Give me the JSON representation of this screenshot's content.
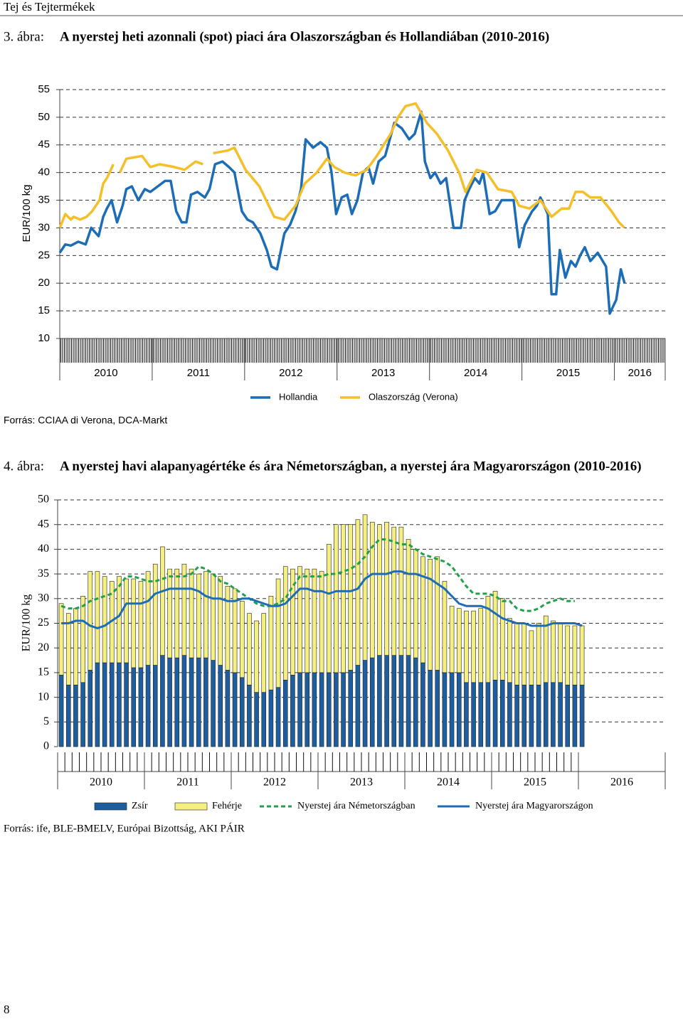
{
  "header": {
    "title": "Tej és Tejtermékek"
  },
  "chart_data": [
    {
      "type": "line",
      "figure_label": "3. ábra:",
      "title": "A nyerstej heti azonnali (spot) piaci ára Olaszországban és Hollandiában (2010-2016)",
      "y_label": "EUR/100 kg",
      "source": "Forrás: CCIAA di Verona, DCA-Markt",
      "xlim": [
        2010,
        2016.55
      ],
      "xticks": [
        2010,
        2011,
        2012,
        2013,
        2014,
        2015,
        2016
      ],
      "ylim": [
        10,
        55
      ],
      "yticks": [
        10,
        15,
        20,
        25,
        30,
        35,
        40,
        45,
        50,
        55
      ],
      "grid": true,
      "legend": "bottom",
      "series": [
        {
          "name": "Hollandia",
          "color": "#1c6db5",
          "x": [
            2010.0,
            2010.06,
            2010.12,
            2010.2,
            2010.28,
            2010.34,
            2010.42,
            2010.47,
            2010.51,
            2010.56,
            2010.62,
            2010.68,
            2010.72,
            2010.78,
            2010.85,
            2010.92,
            2010.98,
            2011.06,
            2011.14,
            2011.2,
            2011.26,
            2011.32,
            2011.37,
            2011.42,
            2011.49,
            2011.57,
            2011.62,
            2011.68,
            2011.76,
            2011.83,
            2011.89,
            2011.97,
            2012.03,
            2012.09,
            2012.17,
            2012.24,
            2012.29,
            2012.35,
            2012.43,
            2012.49,
            2012.55,
            2012.61,
            2012.66,
            2012.74,
            2012.82,
            2012.89,
            2012.94,
            2012.99,
            2013.05,
            2013.11,
            2013.16,
            2013.22,
            2013.28,
            2013.34,
            2013.39,
            2013.45,
            2013.52,
            2013.62,
            2013.7,
            2013.78,
            2013.84,
            2013.91,
            2013.95,
            2014.01,
            2014.06,
            2014.12,
            2014.18,
            2014.26,
            2014.34,
            2014.38,
            2014.43,
            2014.49,
            2014.54,
            2014.58,
            2014.65,
            2014.71,
            2014.78,
            2014.85,
            2014.91,
            2014.97,
            2015.03,
            2015.11,
            2015.16,
            2015.2,
            2015.28,
            2015.32,
            2015.37,
            2015.41,
            2015.47,
            2015.53,
            2015.58,
            2015.63,
            2015.68,
            2015.74,
            2015.82,
            2015.91,
            2015.95,
            2016.02,
            2016.07,
            2016.11
          ],
          "values": [
            25.5,
            27,
            26.8,
            27.5,
            27,
            30,
            28.5,
            32,
            33.5,
            35,
            31,
            34,
            37,
            37.5,
            35,
            37,
            36.5,
            37.5,
            38.5,
            38.5,
            33,
            31,
            31,
            36,
            36.5,
            35.5,
            37,
            41.5,
            42,
            41,
            40,
            33,
            31.5,
            31,
            29,
            26,
            23,
            22.5,
            29,
            30.5,
            33,
            37,
            46,
            44.5,
            45.5,
            44.5,
            40,
            32.5,
            35.5,
            36,
            32.5,
            35,
            40,
            41,
            38,
            42,
            43,
            49,
            48,
            46,
            47,
            51,
            42,
            39,
            40,
            38,
            39,
            30,
            30,
            35,
            37,
            39,
            38,
            40,
            32.5,
            33,
            35,
            35,
            35,
            26.5,
            30.5,
            33,
            34,
            35.5,
            32.5,
            18,
            18,
            26,
            21,
            24,
            23,
            25,
            26.5,
            24,
            25.5,
            23,
            14.5,
            17,
            22.5,
            20
          ]
        },
        {
          "name": "Olaszország (Verona)",
          "color": "#f5bf2a",
          "x": [
            2010.0,
            2010.06,
            2010.12,
            2010.15,
            2010.22,
            2010.29,
            2010.35,
            2010.43,
            2010.47,
            2010.51,
            2010.58,
            2010.62,
            2010.65,
            2010.72,
            2010.89,
            2010.98,
            2011.08,
            2011.24,
            2011.35,
            2011.47,
            2011.55,
            2011.62,
            2011.66,
            2011.82,
            2011.89,
            2012.01,
            2012.16,
            2012.32,
            2012.43,
            2012.55,
            2012.65,
            2012.78,
            2012.89,
            2012.97,
            2013.08,
            2013.2,
            2013.32,
            2013.43,
            2013.58,
            2013.66,
            2013.74,
            2013.85,
            2013.97,
            2014.08,
            2014.2,
            2014.32,
            2014.39,
            2014.51,
            2014.62,
            2014.74,
            2014.89,
            2014.97,
            2015.08,
            2015.2,
            2015.32,
            2015.43,
            2015.51,
            2015.58,
            2015.66,
            2015.74,
            2015.85,
            2015.97,
            2016.05,
            2016.11
          ],
          "values": [
            30,
            32.5,
            31.5,
            32,
            31.5,
            32,
            33,
            35,
            38,
            39,
            41.5,
            null,
            40,
            42.5,
            43,
            41,
            41.5,
            41,
            40.5,
            42,
            41.5,
            null,
            43.5,
            44,
            44.5,
            40.5,
            37.5,
            32,
            31.5,
            34,
            38,
            40,
            42.5,
            41,
            40,
            39.5,
            40.5,
            43,
            47,
            50,
            52,
            52.5,
            49,
            47,
            44,
            40,
            36.5,
            40.5,
            40,
            37,
            36.5,
            34,
            33.5,
            35,
            32,
            33.5,
            33.5,
            36.5,
            36.5,
            35.5,
            35.5,
            33,
            31,
            30
          ]
        }
      ]
    },
    {
      "type": "bar",
      "figure_label": "4. ábra:",
      "title": "A nyerstej havi alapanyagértéke és ára Németországban, a nyerstej ára Magyarországon (2010-2016)",
      "y_label": "EUR/100 kg",
      "source": "Forrás: ife, BLE-BMELV, Európai Bizottság, AKI PÁIR",
      "categories": [
        null,
        null,
        null,
        null,
        null,
        null,
        null,
        null,
        null,
        null,
        null,
        null,
        null,
        null,
        null,
        null,
        null,
        null,
        null,
        null,
        null,
        null,
        null,
        null,
        null,
        null,
        null,
        null,
        null,
        null,
        null,
        null,
        null,
        null,
        null,
        null,
        null,
        null,
        null,
        null,
        null,
        null,
        null,
        null,
        null,
        null,
        null,
        null,
        null,
        null,
        null,
        null,
        null,
        null,
        null,
        null,
        null,
        null,
        null,
        null,
        null,
        null,
        null,
        null,
        null,
        null,
        null,
        null,
        null,
        null,
        null,
        null,
        null
      ],
      "year_labels": [
        2010,
        2011,
        2012,
        2013,
        2014,
        2015,
        2016
      ],
      "ylim": [
        0,
        50
      ],
      "yticks": [
        0,
        5,
        10,
        15,
        20,
        25,
        30,
        35,
        40,
        45,
        50
      ],
      "grid": true,
      "legend": "bottom",
      "series": [
        {
          "name": "Zsír",
          "type": "bar",
          "color": "#1d5e9e",
          "values": [
            14.5,
            12.5,
            12.5,
            13,
            15.5,
            17,
            17,
            17,
            17,
            17,
            16,
            16,
            16.5,
            16.5,
            18.5,
            18,
            18,
            18.5,
            18,
            18,
            18,
            17.5,
            16.5,
            15.5,
            15,
            14,
            12.5,
            11,
            11,
            11.5,
            12,
            13.5,
            14.5,
            15,
            15,
            15,
            15,
            15,
            15,
            15,
            15.5,
            16.5,
            17.5,
            18,
            18.5,
            18.5,
            18.5,
            18.5,
            18.5,
            18,
            17,
            15.5,
            15.5,
            15,
            15,
            15,
            13,
            13,
            13,
            13,
            13.5,
            13.5,
            13,
            12.5,
            12.5,
            12.5,
            12.5,
            13,
            13,
            13,
            12.5,
            12.5,
            12.5
          ]
        },
        {
          "name": "Fehérje",
          "type": "bar",
          "color": "#f4ef80",
          "values": [
            14.5,
            14.5,
            15.5,
            17.5,
            20,
            18.5,
            17.5,
            16.5,
            17.5,
            17,
            18,
            17.5,
            19,
            20.5,
            22,
            18,
            18,
            18.5,
            18,
            17,
            17.5,
            17.5,
            18,
            17,
            17,
            15.5,
            14.5,
            14.5,
            16,
            19,
            22,
            23,
            21.5,
            21.5,
            21,
            21,
            20.5,
            26,
            30,
            30,
            29.5,
            29.5,
            29.5,
            27.5,
            26.5,
            27,
            26,
            26,
            23.5,
            22,
            21.5,
            22.5,
            23,
            18.5,
            13.5,
            13,
            14.5,
            14.5,
            15,
            17.5,
            18,
            16.5,
            13,
            12.5,
            12.5,
            11,
            12.5,
            13.5,
            12.5,
            12,
            12,
            12,
            12
          ]
        },
        {
          "name": "Nyerstej ára Németországban",
          "type": "line",
          "line_style": "dashed",
          "color": "#21a04b",
          "values": [
            28.5,
            28,
            28,
            28.5,
            29.5,
            30,
            30.5,
            31,
            32.5,
            34.5,
            34.5,
            34,
            33.5,
            33.5,
            34,
            34.5,
            34.5,
            34.5,
            35,
            36.5,
            36,
            35,
            33.5,
            33,
            32,
            31,
            30,
            29,
            28.5,
            28.5,
            29,
            30,
            32.5,
            34.5,
            34.5,
            34.5,
            34.5,
            35,
            35,
            35.5,
            36,
            37,
            38.5,
            40.5,
            42,
            42,
            41.5,
            41,
            41,
            40,
            39,
            38.5,
            38,
            37.5,
            36.5,
            34.5,
            32.5,
            31,
            31,
            31,
            30.5,
            29.5,
            29.5,
            28,
            27.5,
            27.5,
            28,
            29,
            29.5,
            30,
            29.5,
            29.5,
            null
          ]
        },
        {
          "name": "Nyerstej ára Magyarországon",
          "type": "line",
          "line_style": "solid",
          "color": "#1c6db5",
          "values": [
            25,
            25,
            25.5,
            25.5,
            24.5,
            24,
            24.5,
            25.5,
            26.5,
            29,
            29,
            29,
            29.5,
            31,
            31.5,
            32,
            32,
            32,
            32,
            31.5,
            30.5,
            30,
            30,
            29.5,
            29.5,
            30,
            30,
            29.5,
            29,
            28.5,
            28.5,
            29,
            30.5,
            32,
            32,
            31.5,
            31.5,
            31,
            31.5,
            31.5,
            31.5,
            32,
            34,
            35,
            35,
            35,
            35.5,
            35.5,
            35,
            35,
            34.5,
            34,
            33,
            32,
            30.5,
            29,
            28.5,
            28.5,
            28.5,
            28,
            27,
            26,
            25.5,
            25,
            25,
            24.5,
            24.5,
            24.5,
            25,
            25,
            25,
            25,
            24.5
          ]
        }
      ]
    }
  ],
  "page_number": "8"
}
